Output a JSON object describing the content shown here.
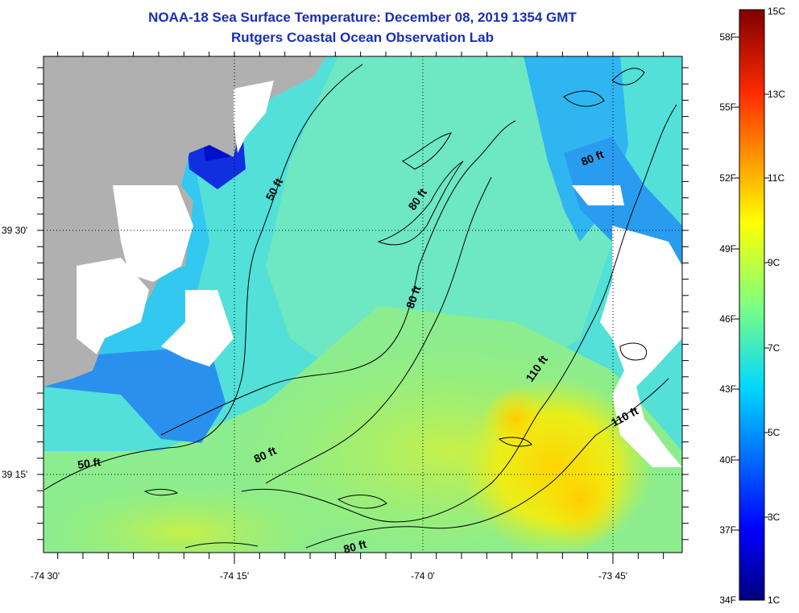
{
  "title": {
    "line1": "NOAA-18 Sea Surface Temperature:  December 08, 2019 1354 GMT",
    "line2": "Rutgers Coastal Ocean Observation Lab"
  },
  "axes": {
    "x_ticks": [
      "-74 30'",
      "-74 15'",
      "-74 0'",
      "-73 45'"
    ],
    "y_ticks": [
      "39 30'",
      "39 15'"
    ]
  },
  "depth_labels": [
    "50 ft",
    "50 ft",
    "80 ft",
    "80 ft",
    "80 ft",
    "80 ft",
    "80 ft",
    "110 ft",
    "110 ft"
  ],
  "colorbar": {
    "fahrenheit": [
      "58F",
      "55F",
      "52F",
      "49F",
      "46F",
      "43F",
      "40F",
      "37F",
      "34F"
    ],
    "celsius": [
      "15C",
      "13C",
      "11C",
      "9C",
      "7C",
      "5C",
      "3C",
      "1C"
    ]
  },
  "colors": {
    "land": "#b0b0b0",
    "cloud": "#ffffff",
    "title": "#1a2fb5"
  }
}
